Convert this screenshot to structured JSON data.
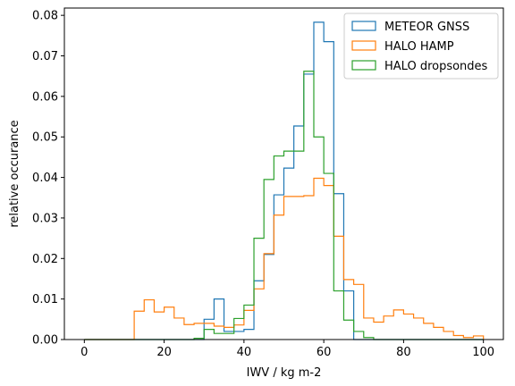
{
  "chart_data": {
    "type": "histogram",
    "xlabel": "IWV / kg m-2",
    "ylabel": "relative occurance",
    "xlim": [
      -5,
      105
    ],
    "ylim": [
      0,
      0.0818
    ],
    "xticks": [
      0,
      20,
      40,
      60,
      80,
      100
    ],
    "yticks": [
      0.0,
      0.01,
      0.02,
      0.03,
      0.04,
      0.05,
      0.06,
      0.07,
      0.08
    ],
    "xtick_labels": [
      "0",
      "20",
      "40",
      "60",
      "80",
      "100"
    ],
    "ytick_labels": [
      "0.00",
      "0.01",
      "0.02",
      "0.03",
      "0.04",
      "0.05",
      "0.06",
      "0.07",
      "0.08"
    ],
    "grid": false,
    "legend_position": "top-right",
    "bin_edges": [
      0,
      2.5,
      5,
      7.5,
      10,
      12.5,
      15,
      17.5,
      20,
      22.5,
      25,
      27.5,
      30,
      32.5,
      35,
      37.5,
      40,
      42.5,
      45,
      47.5,
      50,
      52.5,
      55,
      57.5,
      60,
      62.5,
      65,
      67.5,
      70,
      72.5,
      75,
      77.5,
      80,
      82.5,
      85,
      87.5,
      90,
      92.5,
      95,
      97.5,
      100
    ],
    "series": [
      {
        "name": "METEOR GNSS",
        "color": "#1f77b4",
        "values": [
          0,
          0,
          0,
          0,
          0,
          0,
          0,
          0,
          0,
          0,
          0,
          0,
          0.005,
          0.01,
          0.002,
          0.002,
          0.0025,
          0.0145,
          0.021,
          0.0357,
          0.0423,
          0.0527,
          0.0655,
          0.0783,
          0.0735,
          0.036,
          0.012,
          0,
          0,
          0,
          0,
          0,
          0,
          0,
          0,
          0,
          0,
          0,
          0,
          0
        ]
      },
      {
        "name": "HALO HAMP",
        "color": "#ff7f0e",
        "values": [
          0,
          0,
          0,
          0,
          0,
          0.007,
          0.0098,
          0.0068,
          0.008,
          0.0053,
          0.0037,
          0.004,
          0.004,
          0.0033,
          0.003,
          0.0036,
          0.0072,
          0.0125,
          0.0212,
          0.0307,
          0.0353,
          0.0353,
          0.0355,
          0.0398,
          0.038,
          0.0255,
          0.0148,
          0.0136,
          0.0053,
          0.0043,
          0.0058,
          0.0073,
          0.0063,
          0.0053,
          0.004,
          0.003,
          0.002,
          0.001,
          0.0005,
          0.0009
        ]
      },
      {
        "name": "HALO dropsondes",
        "color": "#2ca02c",
        "values": [
          0,
          0,
          0,
          0,
          0,
          0,
          0,
          0,
          0,
          0,
          0,
          0.0003,
          0.0025,
          0.0015,
          0.0015,
          0.0052,
          0.0085,
          0.025,
          0.0395,
          0.0453,
          0.0465,
          0.0465,
          0.0662,
          0.05,
          0.041,
          0.012,
          0.0048,
          0.002,
          0.0005,
          0,
          0,
          0,
          0,
          0,
          0,
          0,
          0,
          0,
          0,
          0
        ]
      }
    ]
  }
}
